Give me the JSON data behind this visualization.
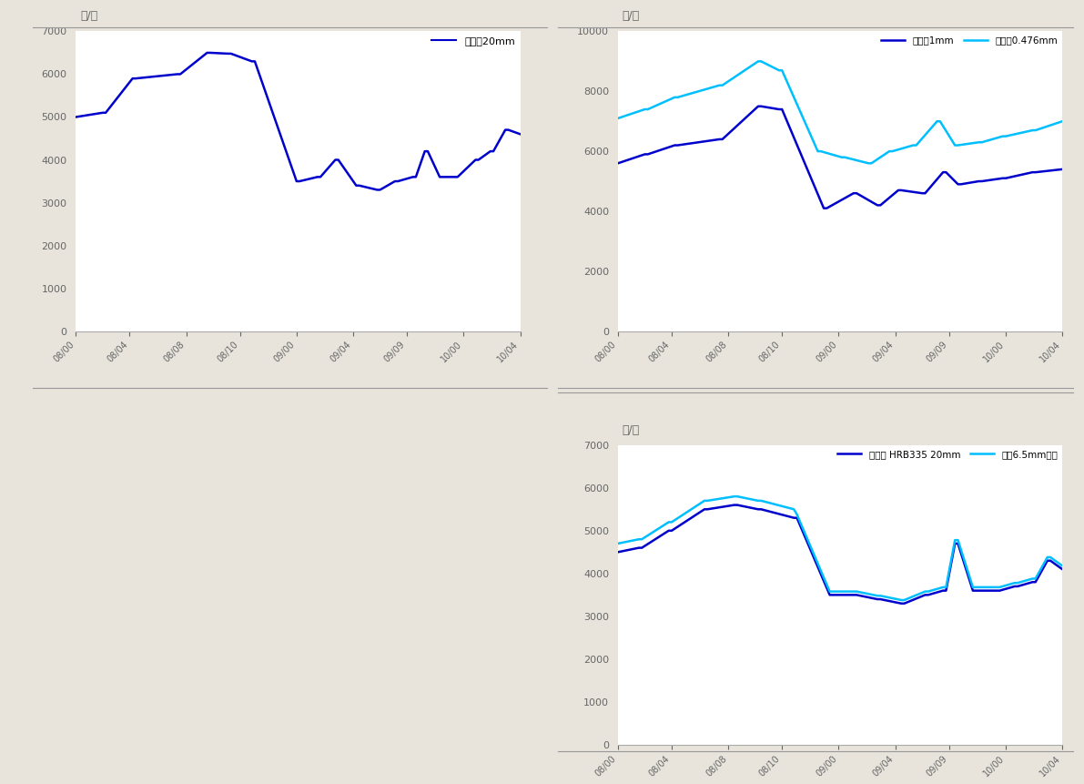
{
  "background_color": "#e8e4dc",
  "ylabel": "元/吨",
  "chart1": {
    "title": "中厚板20mm",
    "color": "#0000cd",
    "ylim": [
      0,
      7000
    ],
    "yticks": [
      0,
      1000,
      2000,
      3000,
      4000,
      5000,
      6000,
      7000
    ]
  },
  "chart2": {
    "legend1": "镀锌板1mm",
    "legend2": "彩涂板0.476mm",
    "color1": "#0000cd",
    "color2": "#00bfff",
    "ylim": [
      0,
      10000
    ],
    "yticks": [
      0,
      2000,
      4000,
      6000,
      8000,
      10000
    ]
  },
  "chart3": {
    "legend1": "螺纹钢 HRB335 20mm",
    "legend2": "线材6.5mm高线",
    "color1": "#0000cd",
    "color2": "#00bfff",
    "ylim": [
      0,
      7000
    ],
    "yticks": [
      0,
      1000,
      2000,
      3000,
      4000,
      5000,
      6000,
      7000
    ]
  },
  "xtick_labels": [
    "08/00",
    "08/04",
    "08/08",
    "08/10",
    "09/00",
    "09/04",
    "09/09",
    "10/00",
    "10/04"
  ],
  "separator_color": "#999999",
  "spine_color": "#aaaaaa",
  "tick_color": "#666666"
}
